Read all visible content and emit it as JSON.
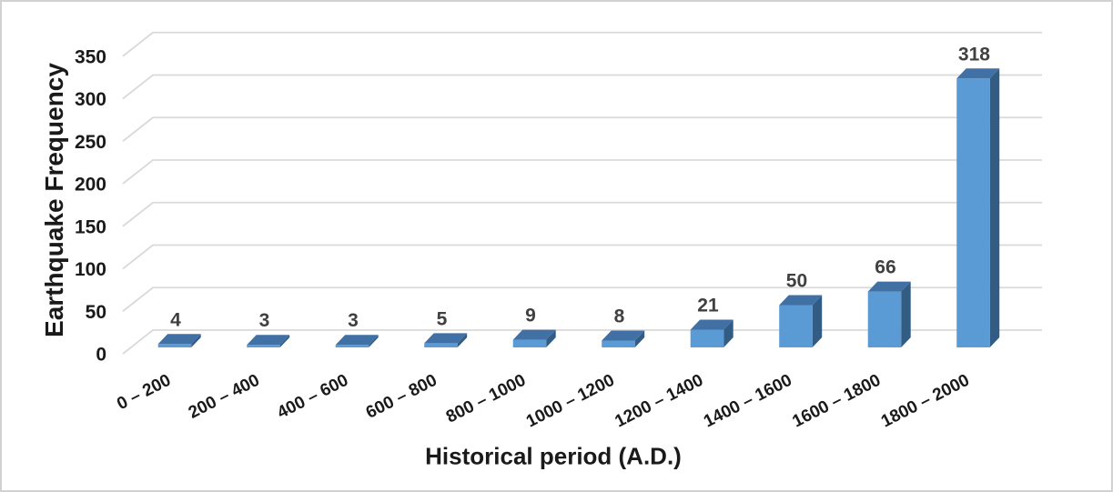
{
  "chart_data": {
    "type": "bar",
    "style": "3d-column",
    "title": "",
    "xlabel": "Historical period (A.D.)",
    "ylabel": "Earthquake Frequency",
    "categories": [
      "0 – 200",
      "200 – 400",
      "400 – 600",
      "600 – 800",
      "800 – 1000",
      "1000 – 1200",
      "1200 – 1400",
      "1400 – 1600",
      "1600 – 1800",
      "1800 – 2000"
    ],
    "values": [
      4,
      3,
      3,
      5,
      9,
      8,
      21,
      50,
      66,
      318
    ],
    "yticks": [
      0,
      50,
      100,
      150,
      200,
      250,
      300,
      350
    ],
    "ylim": [
      0,
      350
    ],
    "grid": true,
    "legend": "none",
    "colors": {
      "bar_front": "#5B9BD5",
      "bar_top": "#4170A4",
      "bar_side": "#335C85",
      "gridline": "#D9D9D9",
      "value_label": "#404040",
      "axis_text": "#1A1A1A",
      "border": "#D2D2D2"
    }
  }
}
